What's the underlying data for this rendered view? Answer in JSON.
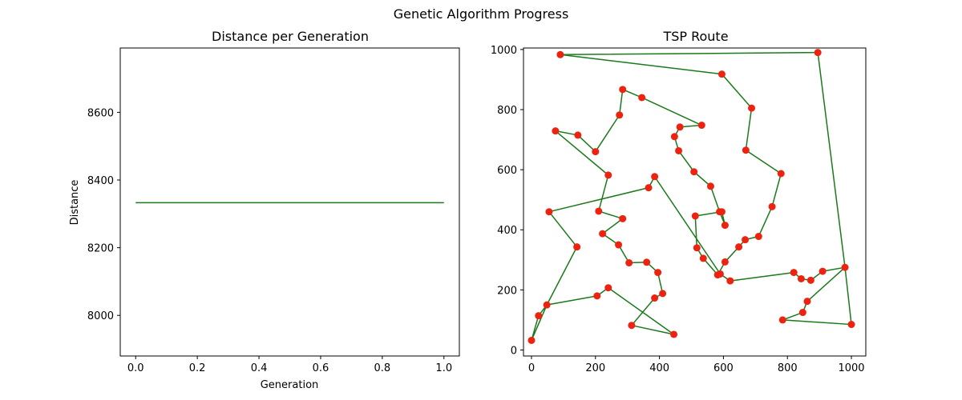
{
  "figure": {
    "title": "Genetic Algorithm Progress"
  },
  "colors": {
    "line": "#1a7a1a",
    "point": "#ee2211",
    "frame": "#000000",
    "background": "#ffffff"
  },
  "chart_data": [
    {
      "type": "line",
      "title": "Distance per Generation",
      "xlabel": "Generation",
      "ylabel": "Distance",
      "xlim": [
        -0.05,
        1.05
      ],
      "ylim": [
        7880,
        8790
      ],
      "xticks": [
        "0.0",
        "0.2",
        "0.4",
        "0.6",
        "0.8",
        "1.0"
      ],
      "yticks": [
        "8000",
        "8200",
        "8400",
        "8600"
      ],
      "x": [
        0.0,
        1.0
      ],
      "series": [
        {
          "values": [
            8333,
            8333
          ]
        }
      ],
      "grid": false
    },
    {
      "type": "line",
      "title": "TSP Route",
      "xlabel": "",
      "ylabel": "",
      "xlim": [
        -25,
        1045
      ],
      "ylim": [
        -20,
        1005
      ],
      "xticks": [
        "0",
        "200",
        "400",
        "600",
        "800",
        "1000"
      ],
      "yticks": [
        "0",
        "200",
        "400",
        "600",
        "800",
        "1000"
      ],
      "markers": true,
      "grid": false,
      "route": [
        [
          0,
          32
        ],
        [
          22,
          114
        ],
        [
          48,
          150
        ],
        [
          142,
          343
        ],
        [
          55,
          460
        ],
        [
          366,
          540
        ],
        [
          385,
          577
        ],
        [
          590,
          253
        ],
        [
          621,
          230
        ],
        [
          820,
          258
        ],
        [
          843,
          237
        ],
        [
          873,
          232
        ],
        [
          910,
          262
        ],
        [
          980,
          275
        ],
        [
          1000,
          85
        ],
        [
          785,
          100
        ],
        [
          848,
          125
        ],
        [
          862,
          162
        ],
        [
          980,
          275
        ],
        [
          895,
          990
        ],
        [
          90,
          983
        ],
        [
          595,
          918
        ],
        [
          688,
          805
        ],
        [
          670,
          665
        ],
        [
          780,
          587
        ],
        [
          752,
          477
        ],
        [
          710,
          378
        ],
        [
          668,
          367
        ],
        [
          648,
          343
        ],
        [
          605,
          293
        ],
        [
          582,
          250
        ],
        [
          537,
          305
        ],
        [
          517,
          340
        ],
        [
          512,
          446
        ],
        [
          595,
          460
        ],
        [
          605,
          415
        ],
        [
          588,
          460
        ],
        [
          560,
          545
        ],
        [
          508,
          593
        ],
        [
          460,
          663
        ],
        [
          447,
          710
        ],
        [
          464,
          742
        ],
        [
          532,
          748
        ],
        [
          345,
          840
        ],
        [
          285,
          867
        ],
        [
          275,
          782
        ],
        [
          200,
          660
        ],
        [
          145,
          715
        ],
        [
          75,
          729
        ],
        [
          240,
          582
        ],
        [
          210,
          462
        ],
        [
          285,
          437
        ],
        [
          222,
          387
        ],
        [
          272,
          350
        ],
        [
          305,
          290
        ],
        [
          360,
          292
        ],
        [
          395,
          258
        ],
        [
          410,
          188
        ],
        [
          385,
          173
        ],
        [
          313,
          82
        ],
        [
          445,
          52
        ],
        [
          240,
          207
        ],
        [
          205,
          180
        ],
        [
          48,
          150
        ],
        [
          0,
          32
        ]
      ]
    }
  ]
}
